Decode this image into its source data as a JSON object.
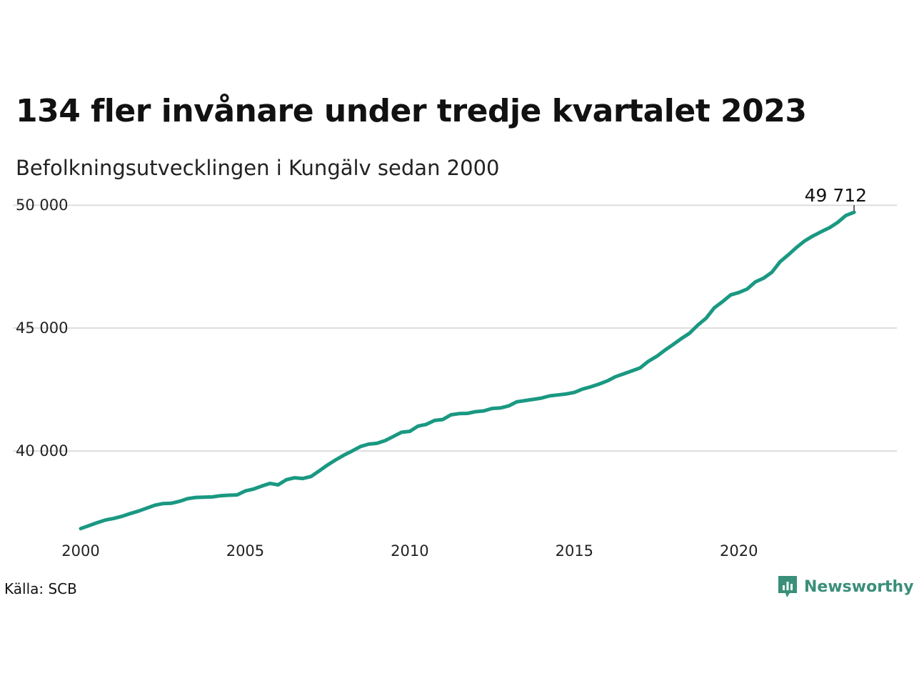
{
  "title": "134 fler invånare under tredje kvartalet 2023",
  "subtitle": "Befolkningsutvecklingen i Kungälv sedan 2000",
  "source": "Källa: SCB",
  "brand": {
    "name": "Newsworthy",
    "icon": "newsworthy-logo-icon",
    "color": "#3a8f7a"
  },
  "colors": {
    "line": "#1a9882",
    "grid": "#dddddd"
  },
  "chart_data": {
    "type": "line",
    "title": "134 fler invånare under tredje kvartalet 2023",
    "subtitle": "Befolkningsutvecklingen i Kungälv sedan 2000",
    "xlabel": "",
    "ylabel": "",
    "x_ticks": [
      "2000",
      "2005",
      "2010",
      "2015",
      "2020"
    ],
    "y_ticks": [
      "40 000",
      "45 000",
      "50 000"
    ],
    "x_tick_values": [
      2000,
      2005,
      2010,
      2015,
      2020
    ],
    "y_tick_values": [
      40000,
      45000,
      50000
    ],
    "xlim": [
      2000,
      2024.8
    ],
    "ylim": [
      36600,
      50500
    ],
    "grid": true,
    "last_label": "49 712",
    "series": [
      {
        "x": [
          2000.0,
          2000.25,
          2000.5,
          2000.75,
          2001.0,
          2001.25,
          2001.5,
          2001.75,
          2002.0,
          2002.25,
          2002.5,
          2002.75,
          2003.0,
          2003.25,
          2003.5,
          2003.75,
          2004.0,
          2004.25,
          2004.5,
          2004.75,
          2005.0,
          2005.25,
          2005.5,
          2005.75,
          2006.0,
          2006.25,
          2006.5,
          2006.75,
          2007.0,
          2007.25,
          2007.5,
          2007.75,
          2008.0,
          2008.25,
          2008.5,
          2008.75,
          2009.0,
          2009.25,
          2009.5,
          2009.75,
          2010.0,
          2010.25,
          2010.5,
          2010.75,
          2011.0,
          2011.25,
          2011.5,
          2011.75,
          2012.0,
          2012.25,
          2012.5,
          2012.75,
          2013.0,
          2013.25,
          2013.5,
          2013.75,
          2014.0,
          2014.25,
          2014.5,
          2014.75,
          2015.0,
          2015.25,
          2015.5,
          2015.75,
          2016.0,
          2016.25,
          2016.5,
          2016.75,
          2017.0,
          2017.25,
          2017.5,
          2017.75,
          2018.0,
          2018.25,
          2018.5,
          2018.75,
          2019.0,
          2019.25,
          2019.5,
          2019.75,
          2020.0,
          2020.25,
          2020.5,
          2020.75,
          2021.0,
          2021.25,
          2021.5,
          2021.75,
          2022.0,
          2022.25,
          2022.5,
          2022.75,
          2023.0,
          2023.25,
          2023.5
        ],
        "values": [
          36840,
          36960,
          37080,
          37190,
          37250,
          37340,
          37450,
          37550,
          37670,
          37790,
          37860,
          37870,
          37950,
          38060,
          38110,
          38120,
          38130,
          38180,
          38200,
          38210,
          38370,
          38450,
          38570,
          38680,
          38620,
          38830,
          38910,
          38880,
          38960,
          39190,
          39430,
          39640,
          39830,
          40000,
          40180,
          40280,
          40310,
          40420,
          40590,
          40760,
          40800,
          41010,
          41080,
          41240,
          41280,
          41470,
          41520,
          41530,
          41600,
          41630,
          41730,
          41750,
          41830,
          42000,
          42050,
          42100,
          42150,
          42240,
          42280,
          42320,
          42380,
          42520,
          42610,
          42720,
          42850,
          43020,
          43140,
          43260,
          43380,
          43650,
          43850,
          44100,
          44330,
          44570,
          44790,
          45120,
          45400,
          45820,
          46070,
          46350,
          46450,
          46590,
          46880,
          47030,
          47270,
          47700,
          47980,
          48280,
          48550,
          48750,
          48920,
          49080,
          49300,
          49580,
          49712
        ]
      }
    ]
  }
}
